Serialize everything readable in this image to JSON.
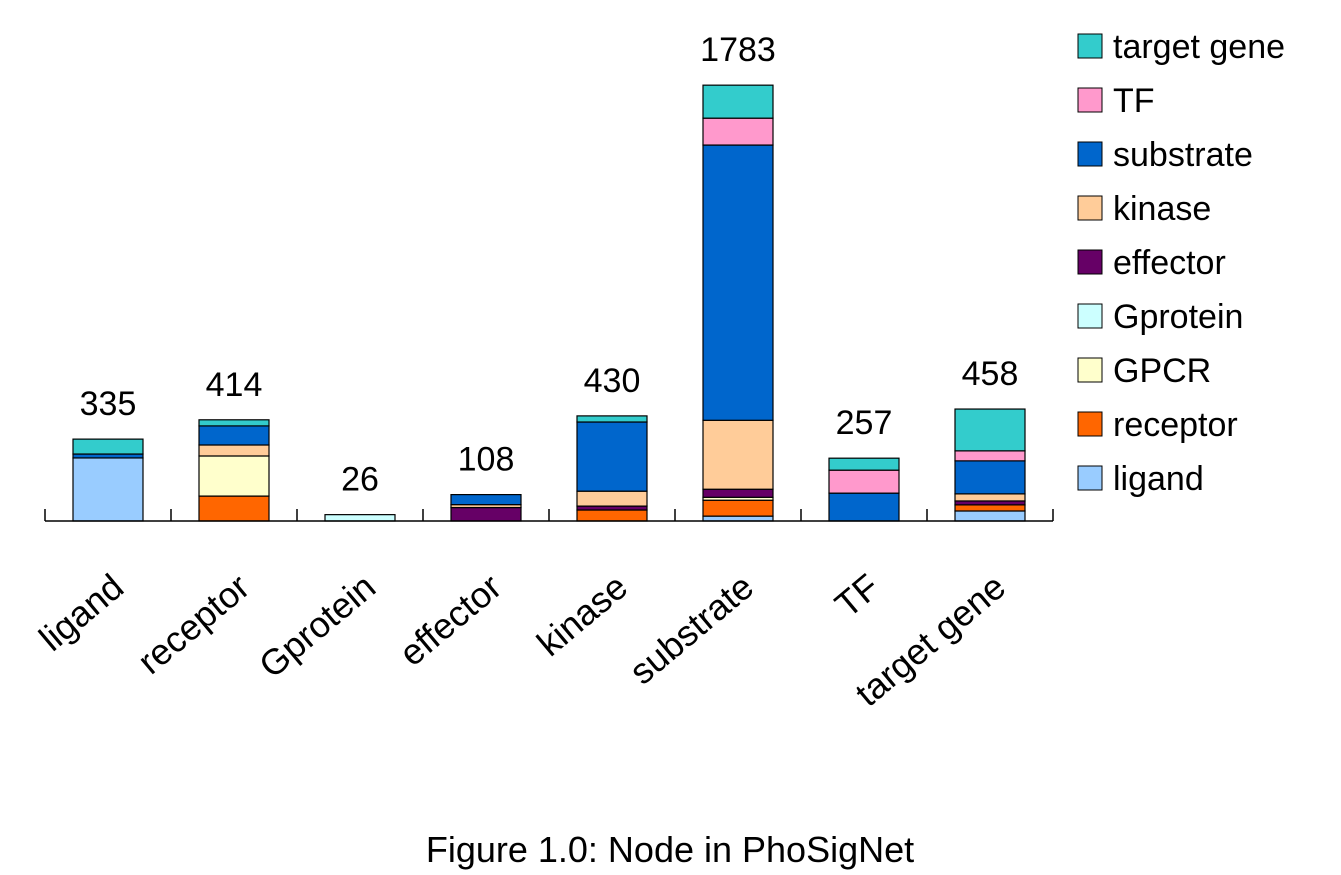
{
  "chart_data": {
    "type": "stacked-bar",
    "title": "Figure 1.0: Node in PhoSigNet",
    "categories": [
      "ligand",
      "receptor",
      "Gprotein",
      "effector",
      "kinase",
      "substrate",
      "TF",
      "target gene"
    ],
    "totals": [
      335,
      414,
      26,
      108,
      430,
      1783,
      257,
      458
    ],
    "ylim": [
      0,
      1800
    ],
    "series": [
      {
        "name": "ligand",
        "color": "#99ccff",
        "values": [
          258,
          0,
          0,
          0,
          0,
          20,
          0,
          41
        ]
      },
      {
        "name": "receptor",
        "color": "#ff6600",
        "values": [
          0,
          102,
          0,
          0,
          45,
          65,
          0,
          25
        ]
      },
      {
        "name": "GPCR",
        "color": "#ffffcc",
        "values": [
          0,
          164,
          0,
          0,
          0,
          12,
          0,
          0
        ]
      },
      {
        "name": "Gprotein",
        "color": "#ccffff",
        "values": [
          0,
          0,
          26,
          0,
          0,
          0,
          0,
          0
        ]
      },
      {
        "name": "effector",
        "color": "#660066",
        "values": [
          0,
          0,
          0,
          55,
          16,
          33,
          0,
          16
        ]
      },
      {
        "name": "kinase",
        "color": "#ffcc99",
        "values": [
          0,
          45,
          0,
          12,
          61,
          282,
          0,
          29
        ]
      },
      {
        "name": "substrate",
        "color": "#0066cc",
        "values": [
          16,
          78,
          0,
          41,
          283,
          1126,
          114,
          135
        ]
      },
      {
        "name": "TF",
        "color": "#ff99cc",
        "values": [
          0,
          0,
          0,
          0,
          0,
          110,
          94,
          41
        ]
      },
      {
        "name": "target gene",
        "color": "#33cccc",
        "values": [
          61,
          25,
          0,
          0,
          25,
          135,
          49,
          171
        ]
      }
    ]
  }
}
